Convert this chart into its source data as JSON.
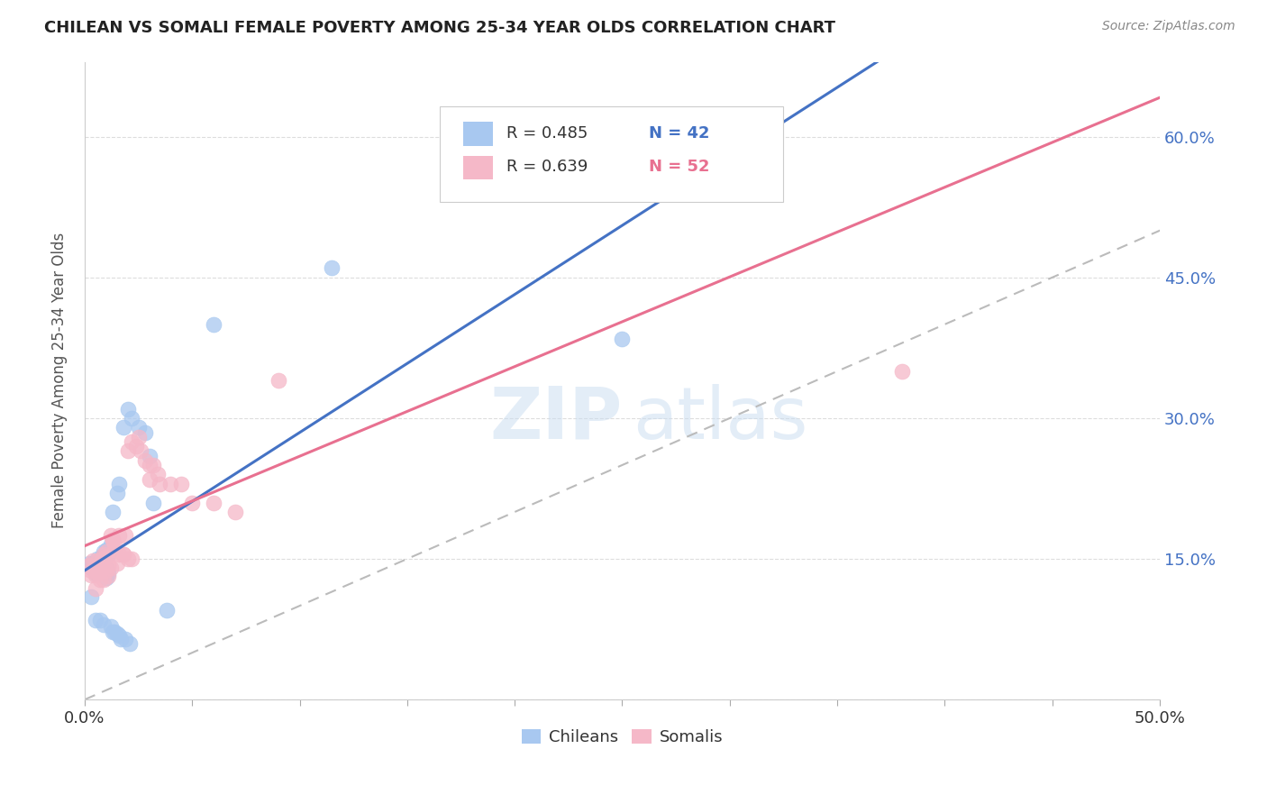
{
  "title": "CHILEAN VS SOMALI FEMALE POVERTY AMONG 25-34 YEAR OLDS CORRELATION CHART",
  "source": "Source: ZipAtlas.com",
  "ylabel": "Female Poverty Among 25-34 Year Olds",
  "xlim": [
    0.0,
    0.5
  ],
  "ylim": [
    0.0,
    0.68
  ],
  "yticks": [
    0.0,
    0.15,
    0.3,
    0.45,
    0.6
  ],
  "legend_R_chilean": "R = 0.485",
  "legend_N_chilean": "N = 42",
  "legend_R_somali": "R = 0.639",
  "legend_N_somali": "N = 52",
  "chilean_color": "#A8C8F0",
  "somali_color": "#F5B8C8",
  "trendline_chilean_color": "#4472C4",
  "trendline_somali_color": "#E87090",
  "diagonal_color": "#BBBBBB",
  "watermark_zip": "ZIP",
  "watermark_atlas": "atlas",
  "background_color": "#FFFFFF",
  "grid_color": "#DDDDDD",
  "chilean_x": [
    0.003,
    0.005,
    0.006,
    0.007,
    0.008,
    0.009,
    0.01,
    0.01,
    0.011,
    0.012,
    0.013,
    0.015,
    0.016,
    0.018,
    0.02,
    0.022,
    0.025,
    0.028,
    0.03,
    0.032,
    0.038,
    0.002,
    0.003,
    0.004,
    0.005,
    0.006,
    0.007,
    0.008,
    0.009,
    0.01,
    0.011,
    0.012,
    0.013,
    0.014,
    0.015,
    0.016,
    0.017,
    0.019,
    0.021,
    0.06,
    0.115,
    0.25
  ],
  "chilean_y": [
    0.14,
    0.135,
    0.15,
    0.148,
    0.145,
    0.158,
    0.16,
    0.14,
    0.135,
    0.165,
    0.2,
    0.22,
    0.23,
    0.29,
    0.31,
    0.3,
    0.29,
    0.285,
    0.26,
    0.21,
    0.095,
    0.145,
    0.11,
    0.145,
    0.085,
    0.138,
    0.085,
    0.152,
    0.08,
    0.13,
    0.155,
    0.078,
    0.072,
    0.072,
    0.07,
    0.068,
    0.065,
    0.065,
    0.06,
    0.4,
    0.46,
    0.385
  ],
  "somali_x": [
    0.003,
    0.005,
    0.006,
    0.007,
    0.008,
    0.009,
    0.01,
    0.01,
    0.011,
    0.012,
    0.013,
    0.014,
    0.015,
    0.016,
    0.018,
    0.019,
    0.02,
    0.022,
    0.024,
    0.026,
    0.028,
    0.03,
    0.032,
    0.034,
    0.002,
    0.003,
    0.004,
    0.005,
    0.006,
    0.007,
    0.008,
    0.009,
    0.01,
    0.011,
    0.012,
    0.013,
    0.014,
    0.016,
    0.018,
    0.02,
    0.022,
    0.025,
    0.03,
    0.035,
    0.04,
    0.045,
    0.05,
    0.06,
    0.07,
    0.09,
    0.25,
    0.38
  ],
  "somali_y": [
    0.138,
    0.133,
    0.148,
    0.145,
    0.143,
    0.155,
    0.158,
    0.138,
    0.132,
    0.14,
    0.17,
    0.165,
    0.145,
    0.175,
    0.155,
    0.175,
    0.265,
    0.275,
    0.27,
    0.265,
    0.255,
    0.25,
    0.25,
    0.24,
    0.143,
    0.133,
    0.148,
    0.118,
    0.136,
    0.128,
    0.15,
    0.128,
    0.153,
    0.143,
    0.175,
    0.17,
    0.16,
    0.155,
    0.155,
    0.15,
    0.15,
    0.28,
    0.235,
    0.23,
    0.23,
    0.23,
    0.21,
    0.21,
    0.2,
    0.34,
    0.6,
    0.35
  ]
}
